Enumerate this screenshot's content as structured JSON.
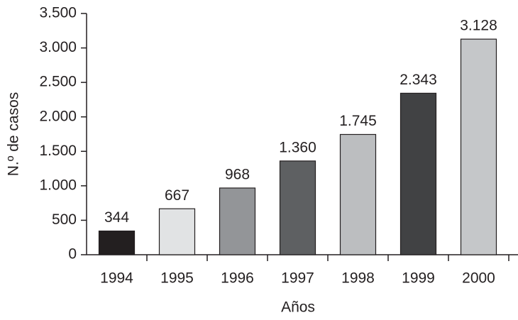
{
  "chart_data": {
    "type": "bar",
    "x_label": "Años",
    "y_label": "N.º de casos",
    "categories": [
      "1994",
      "1995",
      "1996",
      "1997",
      "1998",
      "1999",
      "2000"
    ],
    "values": [
      344,
      667,
      968,
      1360,
      1745,
      2343,
      3128
    ],
    "value_labels": [
      "344",
      "667",
      "968",
      "1.360",
      "1.745",
      "2.343",
      "3.128"
    ],
    "colors": [
      "#231f20",
      "#e1e3e4",
      "#939598",
      "#5e6062",
      "#bcbec0",
      "#414244",
      "#c5c7c9"
    ],
    "ylim": [
      0,
      3500
    ],
    "yticks": [
      0,
      500,
      {
        "value": 1000,
        "label": "1.000"
      },
      {
        "value": 1500,
        "label": "1.500"
      },
      {
        "value": 2000,
        "label": "2.000"
      },
      {
        "value": 2500,
        "label": "2.500"
      },
      {
        "value": 3000,
        "label": "3.000"
      },
      {
        "value": 3500,
        "label": "3.500"
      }
    ]
  }
}
